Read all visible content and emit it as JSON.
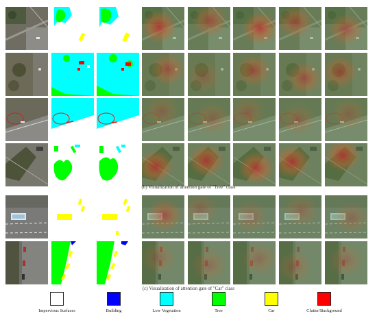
{
  "captions": {
    "tree": "(b) Visualization of attention gate of \"Tree\" class",
    "car": "(c) Visualization of attention gate of \"Car\" class"
  },
  "legend": [
    {
      "label": "Impervious Surfaces",
      "color": "#ffffff"
    },
    {
      "label": "Building",
      "color": "#0000ff"
    },
    {
      "label": "Low Vegetation",
      "color": "#00ffff"
    },
    {
      "label": "Tree",
      "color": "#00ff00"
    },
    {
      "label": "Car",
      "color": "#ffff00"
    },
    {
      "label": "Clutter/Background",
      "color": "#ff0000"
    }
  ],
  "panels": {
    "tree": {
      "rows": [
        {
          "image": "aerial-road",
          "maps": [
            "label-tree-lowveg-car",
            "prediction-tree-lowveg-car"
          ],
          "heatmaps": [
            "strong",
            "medium",
            "strong",
            "medium",
            "medium"
          ]
        },
        {
          "image": "aerial-grass-trees",
          "maps": [
            "label-lowveg-tree-car",
            "prediction-lowveg-tree-car"
          ],
          "heatmaps": [
            "medium",
            "weak",
            "medium",
            "medium",
            "medium"
          ]
        },
        {
          "image": "aerial-road-circled",
          "maps": [
            "label-lowveg-circled",
            "prediction-lowveg-circled"
          ],
          "heatmaps": [
            "weak",
            "weak",
            "weak",
            "weak",
            "weak"
          ]
        },
        {
          "image": "aerial-parking-trees",
          "maps": [
            "label-tree-car",
            "prediction-tree-car"
          ],
          "heatmaps": [
            "strong",
            "strong",
            "strong",
            "strong",
            "strong"
          ]
        }
      ]
    },
    "car": {
      "rows": [
        {
          "image": "aerial-street-cars",
          "maps": [
            "label-cars",
            "prediction-cars"
          ],
          "heatmaps": [
            "medium",
            "weak",
            "weak",
            "weak",
            "weak"
          ]
        },
        {
          "image": "aerial-street-parked",
          "maps": [
            "label-tree-cars",
            "prediction-tree-cars"
          ],
          "heatmaps": [
            "weak",
            "weak",
            "weak",
            "weak",
            "weak"
          ]
        }
      ]
    }
  }
}
